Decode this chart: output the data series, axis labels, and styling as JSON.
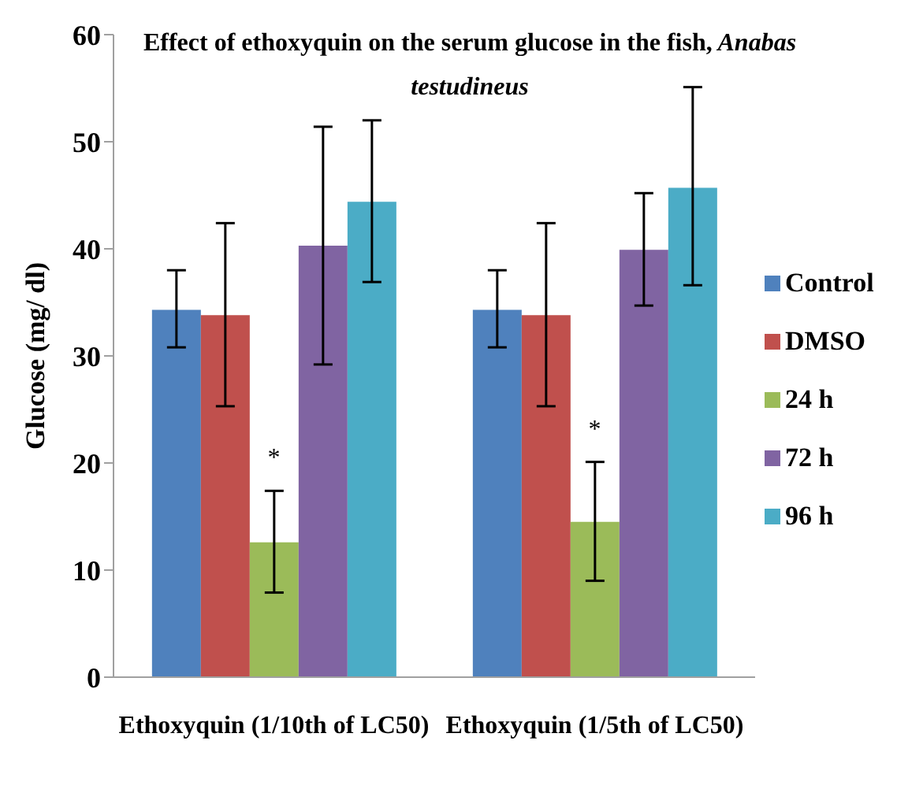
{
  "chart_data": {
    "type": "bar",
    "title": "Effect of ethoxyquin on the serum glucose in  the fish, Anabas testudineus",
    "ylabel": "Glucose (mg/ dl)",
    "categories": [
      "Ethoxyquin (1/10th of LC50)",
      "Ethoxyquin (1/5th of LC50)"
    ],
    "series": [
      {
        "name": "Control",
        "color": "#4f81bd",
        "values": [
          34.3,
          34.3
        ],
        "errors": [
          [
            30.8,
            38.0
          ],
          [
            30.8,
            38.0
          ]
        ]
      },
      {
        "name": "DMSO",
        "color": "#c0504d",
        "values": [
          33.8,
          33.8
        ],
        "errors": [
          [
            25.3,
            42.4
          ],
          [
            25.3,
            42.4
          ]
        ]
      },
      {
        "name": "24 h",
        "color": "#9bbb59",
        "values": [
          12.6,
          14.5
        ],
        "errors": [
          [
            7.9,
            17.4
          ],
          [
            9.0,
            20.1
          ]
        ]
      },
      {
        "name": "72 h",
        "color": "#8064a2",
        "values": [
          40.3,
          39.9
        ],
        "errors": [
          [
            29.2,
            51.4
          ],
          [
            34.7,
            45.2
          ]
        ]
      },
      {
        "name": "96 h",
        "color": "#4bacc6",
        "values": [
          44.4,
          45.7
        ],
        "errors": [
          [
            36.9,
            52.0
          ],
          [
            36.6,
            55.1
          ]
        ]
      }
    ],
    "annotations": [
      "*",
      "*"
    ],
    "ylim": [
      0,
      60
    ],
    "yticks": [
      0,
      10,
      20,
      30,
      40,
      50,
      60
    ],
    "legend": "right"
  }
}
